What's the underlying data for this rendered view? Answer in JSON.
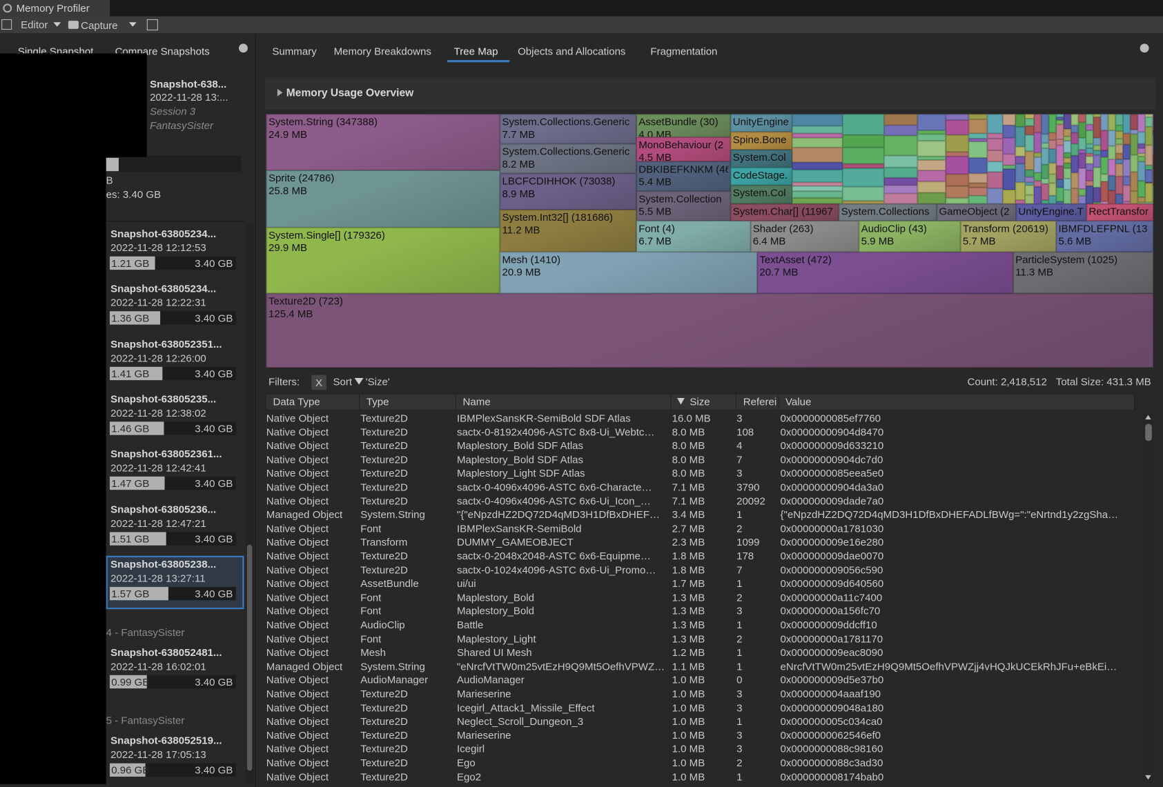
{
  "window": {
    "title": "Memory Profiler"
  },
  "toolbar": {
    "editor": "Editor",
    "capture": "Capture"
  },
  "left_tabs": [
    "Single Snapshot",
    "Compare Snapshots"
  ],
  "selected": {
    "name": "Snapshot-638...",
    "date": "2022-11-28 13:...",
    "session": "Session 3",
    "project": "FantasySister",
    "line1": "B",
    "line2": "es: 3.40 GB"
  },
  "snapshots": [
    {
      "name": "Snapshot-63805234...",
      "date": "2022-11-28 12:12:53",
      "used": "1.21 GB",
      "total": "3.40 GB"
    },
    {
      "name": "Snapshot-63805234...",
      "date": "2022-11-28 12:22:31",
      "used": "1.36 GB",
      "total": "3.40 GB"
    },
    {
      "name": "Snapshot-638052351...",
      "date": "2022-11-28 12:26:00",
      "used": "1.41 GB",
      "total": "3.40 GB"
    },
    {
      "name": "Snapshot-63805235...",
      "date": "2022-11-28 12:38:02",
      "used": "1.46 GB",
      "total": "3.40 GB"
    },
    {
      "name": "Snapshot-638052361...",
      "date": "2022-11-28 12:42:41",
      "used": "1.47 GB",
      "total": "3.40 GB"
    },
    {
      "name": "Snapshot-63805236...",
      "date": "2022-11-28 12:47:21",
      "used": "1.51 GB",
      "total": "3.40 GB"
    },
    {
      "name": "Snapshot-63805238...",
      "date": "2022-11-28 13:27:11",
      "used": "1.57 GB",
      "total": "3.40 GB"
    },
    {
      "name": "Snapshot-638052481...",
      "date": "2022-11-28 16:02:01",
      "used": "0.99 GB",
      "total": "3.40 GB"
    },
    {
      "name": "Snapshot-638052519...",
      "date": "2022-11-28 17:05:13",
      "used": "0.96 GB",
      "total": "3.40 GB"
    }
  ],
  "sessions": [
    "4 - FantasySister",
    "5 - FantasySister"
  ],
  "tabs": [
    "Summary",
    "Memory Breakdowns",
    "Tree Map",
    "Objects and Allocations",
    "Fragmentation"
  ],
  "section": "Memory Usage Overview",
  "treemap": [
    {
      "label": "System.String (347388)",
      "size": "24.9 MB"
    },
    {
      "label": "Sprite (24786)",
      "size": "25.8 MB"
    },
    {
      "label": "System.Single[] (179326)",
      "size": "29.9 MB"
    },
    {
      "label": "Texture2D (723)",
      "size": "125.4 MB"
    },
    {
      "label": "System.Collections.Generic",
      "size": "7.7 MB"
    },
    {
      "label": "System.Collections.Generic",
      "size": "8.2 MB"
    },
    {
      "label": "LBCFCDIHHOK (73038)",
      "size": "8.9 MB"
    },
    {
      "label": "System.Int32[] (181686)",
      "size": "11.2 MB"
    },
    {
      "label": "Mesh (1410)",
      "size": "20.9 MB"
    },
    {
      "label": "TextAsset (472)",
      "size": "20.7 MB"
    },
    {
      "label": "ParticleSystem (1025)",
      "size": "11.3 MB"
    },
    {
      "label": "AssetBundle (30)",
      "size": "4.0 MB"
    },
    {
      "label": "MonoBehaviour (2",
      "size": "4.5 MB"
    },
    {
      "label": "DBKIBEFKNKM (46",
      "size": "5.4 MB"
    },
    {
      "label": "System.Collection",
      "size": "5.5 MB"
    },
    {
      "label": "Font (4)",
      "size": "6.7 MB"
    },
    {
      "label": "Shader (263)",
      "size": "6.4 MB"
    },
    {
      "label": "AudioClip (43)",
      "size": "5.9 MB"
    },
    {
      "label": "Transform (20619)",
      "size": "5.7 MB"
    },
    {
      "label": "IBMFDLEFPNL (13",
      "size": "5.6 MB"
    },
    {
      "label": "UnityEngine"
    },
    {
      "label": "Spine.Bone"
    },
    {
      "label": "System.Col"
    },
    {
      "label": "CodeStage."
    },
    {
      "label": "System.Col"
    },
    {
      "label": "System.Char[] (11967"
    },
    {
      "label": "System.Collections"
    },
    {
      "label": "GameObject (2"
    },
    {
      "label": "UnityEngine.T"
    },
    {
      "label": "RectTransfor"
    }
  ],
  "filters": {
    "label": "Filters:",
    "clear": "X",
    "sort": "Sort",
    "sort_field": "'Size'",
    "count": "Count: 2,418,512",
    "total": "Total Size: 431.3 MB"
  },
  "table": {
    "columns": [
      "Data Type",
      "Type",
      "Name",
      "Size",
      "Referei",
      "Value"
    ],
    "rows": [
      [
        "Native Object",
        "Texture2D",
        "IBMPlexSansKR-SemiBold SDF Atlas",
        "16.0 MB",
        "3",
        "0x0000000085ef7760"
      ],
      [
        "Native Object",
        "Texture2D",
        "sactx-0-8192x4096-ASTC 8x8-Ui_Webtc…",
        "8.0 MB",
        "108",
        "0x00000000904d8470"
      ],
      [
        "Native Object",
        "Texture2D",
        "Maplestory_Bold SDF Atlas",
        "8.0 MB",
        "4",
        "0x000000009d633210"
      ],
      [
        "Native Object",
        "Texture2D",
        "Maplestory_Bold SDF Atlas",
        "8.0 MB",
        "7",
        "0x00000000904dc7d0"
      ],
      [
        "Native Object",
        "Texture2D",
        "Maplestory_Light SDF Atlas",
        "8.0 MB",
        "3",
        "0x0000000085eea5e0"
      ],
      [
        "Native Object",
        "Texture2D",
        "sactx-0-4096x4096-ASTC 6x6-Characte…",
        "7.1 MB",
        "3790",
        "0x00000000904da3a0"
      ],
      [
        "Native Object",
        "Texture2D",
        "sactx-0-4096x4096-ASTC 6x6-Ui_Icon_…",
        "7.1 MB",
        "20092",
        "0x000000009dade7a0"
      ],
      [
        "Managed Object",
        "System.String",
        "\"{\"eNpzdHZ2DQ72D4qMD3H1DfBxDHEF…",
        "3.4 MB",
        "1",
        "{\"eNpzdHZ2DQ72D4qMD3H1DfBxDHEFADLfBWg=\":\"eNrtnd1y2zgSha…"
      ],
      [
        "Native Object",
        "Font",
        "IBMPlexSansKR-SemiBold",
        "2.7 MB",
        "2",
        "0x00000000a1781030"
      ],
      [
        "Native Object",
        "Transform",
        "DUMMY_GAMEOBJECT",
        "2.3 MB",
        "1099",
        "0x000000009e16e280"
      ],
      [
        "Native Object",
        "Texture2D",
        "sactx-0-2048x2048-ASTC 6x6-Equipme…",
        "1.8 MB",
        "178",
        "0x000000009dae0070"
      ],
      [
        "Native Object",
        "Texture2D",
        "sactx-0-1024x4096-ASTC 6x6-Ui_Promo…",
        "1.8 MB",
        "7",
        "0x000000009056c590"
      ],
      [
        "Native Object",
        "AssetBundle",
        "ui/ui",
        "1.7 MB",
        "1",
        "0x000000009d640560"
      ],
      [
        "Native Object",
        "Font",
        "Maplestory_Bold",
        "1.3 MB",
        "2",
        "0x00000000a11c7400"
      ],
      [
        "Native Object",
        "Font",
        "Maplestory_Bold",
        "1.3 MB",
        "3",
        "0x00000000a156fc70"
      ],
      [
        "Native Object",
        "AudioClip",
        "Battle",
        "1.3 MB",
        "1",
        "0x000000009ddcff10"
      ],
      [
        "Native Object",
        "Font",
        "Maplestory_Light",
        "1.3 MB",
        "2",
        "0x00000000a1781170"
      ],
      [
        "Native Object",
        "Mesh",
        "Shared UI Mesh",
        "1.2 MB",
        "1",
        "0x000000009eac8090"
      ],
      [
        "Managed Object",
        "System.String",
        "\"eNrcfVtTW0m25vtEzH9Q9Mt5OefhVPWZ…",
        "1.1 MB",
        "1",
        "eNrcfVtTW0m25vtEzH9Q9Mt5OefhVPWZjj4vHQJkUCEkRhJFu+eBkEi…"
      ],
      [
        "Native Object",
        "AudioManager",
        "AudioManager",
        "1.0 MB",
        "0",
        "0x000000009d5e37b0"
      ],
      [
        "Native Object",
        "Texture2D",
        "Marieserine",
        "1.0 MB",
        "3",
        "0x000000004aaaf190"
      ],
      [
        "Native Object",
        "Texture2D",
        "Icegirl_Attack1_Missile_Effect",
        "1.0 MB",
        "3",
        "0x000000009048a180"
      ],
      [
        "Native Object",
        "Texture2D",
        "Neglect_Scroll_Dungeon_3",
        "1.0 MB",
        "1",
        "0x000000005c034ca0"
      ],
      [
        "Native Object",
        "Texture2D",
        "Marieserine",
        "1.0 MB",
        "3",
        "0x0000000062546ef0"
      ],
      [
        "Native Object",
        "Texture2D",
        "Icegirl",
        "1.0 MB",
        "3",
        "0x0000000088c98160"
      ],
      [
        "Native Object",
        "Texture2D",
        "Ego",
        "1.0 MB",
        "2",
        "0x0000000088c3ad30"
      ],
      [
        "Native Object",
        "Texture2D",
        "Ego2",
        "1.0 MB",
        "1",
        "0x000000008174bab0"
      ]
    ]
  }
}
